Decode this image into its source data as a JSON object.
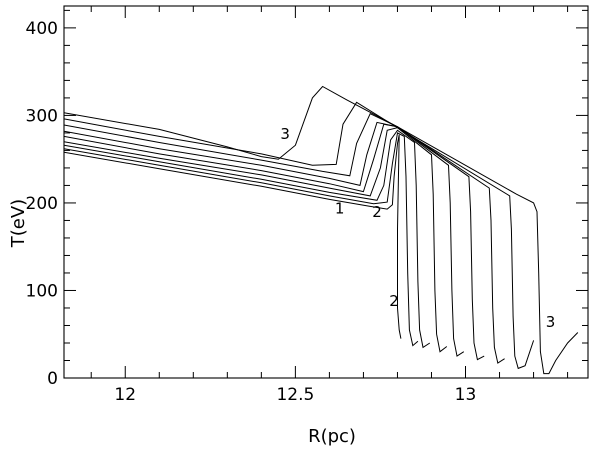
{
  "chart_data": {
    "type": "line",
    "title": "",
    "xlabel": "R(pc)",
    "ylabel": "T(eV)",
    "xlim": [
      11.82,
      13.36
    ],
    "ylim": [
      0,
      425
    ],
    "x_ticks": [
      12,
      12.5,
      13
    ],
    "x_tick_labels": [
      "12",
      "12.5",
      "13"
    ],
    "y_ticks": [
      0,
      100,
      200,
      300,
      400
    ],
    "y_tick_labels": [
      "0",
      "100",
      "200",
      "300",
      "400"
    ],
    "grid": false,
    "legend": "none",
    "annotations": [
      {
        "text": "1",
        "x": 12.63,
        "y": 188
      },
      {
        "text": "2",
        "x": 12.74,
        "y": 184
      },
      {
        "text": "2",
        "x": 12.79,
        "y": 82
      },
      {
        "text": "3",
        "x": 12.47,
        "y": 273
      },
      {
        "text": "3",
        "x": 13.25,
        "y": 58
      }
    ],
    "series": [
      {
        "points": [
          [
            11.82,
            258
          ],
          [
            12.1,
            239
          ],
          [
            12.4,
            219
          ],
          [
            12.6,
            204
          ],
          [
            12.72,
            196
          ],
          [
            12.77,
            193
          ],
          [
            12.785,
            198
          ],
          [
            12.79,
            230
          ],
          [
            12.8,
            268
          ],
          [
            12.805,
            278
          ],
          [
            12.8,
            170
          ],
          [
            12.8,
            80
          ],
          [
            12.805,
            55
          ],
          [
            12.81,
            45
          ]
        ]
      },
      {
        "points": [
          [
            11.82,
            262
          ],
          [
            12.1,
            243
          ],
          [
            12.4,
            223
          ],
          [
            12.6,
            208
          ],
          [
            12.73,
            199
          ],
          [
            12.77,
            201
          ],
          [
            12.785,
            245
          ],
          [
            12.8,
            280
          ],
          [
            12.82,
            276
          ],
          [
            12.825,
            230
          ],
          [
            12.83,
            120
          ],
          [
            12.835,
            55
          ],
          [
            12.845,
            37
          ],
          [
            12.86,
            42
          ]
        ]
      },
      {
        "points": [
          [
            11.82,
            266
          ],
          [
            12.1,
            247
          ],
          [
            12.4,
            227
          ],
          [
            12.6,
            212
          ],
          [
            12.74,
            203
          ],
          [
            12.76,
            220
          ],
          [
            12.78,
            272
          ],
          [
            12.8,
            283
          ],
          [
            12.85,
            269
          ],
          [
            12.855,
            220
          ],
          [
            12.86,
            110
          ],
          [
            12.865,
            55
          ],
          [
            12.875,
            35
          ],
          [
            12.895,
            40
          ]
        ]
      },
      {
        "points": [
          [
            11.82,
            270
          ],
          [
            12.1,
            251
          ],
          [
            12.4,
            232
          ],
          [
            12.6,
            217
          ],
          [
            12.72,
            208
          ],
          [
            12.75,
            240
          ],
          [
            12.77,
            283
          ],
          [
            12.8,
            286
          ],
          [
            12.9,
            255
          ],
          [
            12.905,
            210
          ],
          [
            12.91,
            100
          ],
          [
            12.915,
            50
          ],
          [
            12.925,
            30
          ],
          [
            12.945,
            36
          ]
        ]
      },
      {
        "points": [
          [
            11.82,
            276
          ],
          [
            12.1,
            256
          ],
          [
            12.4,
            237
          ],
          [
            12.6,
            222
          ],
          [
            12.7,
            213
          ],
          [
            12.73,
            250
          ],
          [
            12.76,
            290
          ],
          [
            12.8,
            287
          ],
          [
            12.95,
            243
          ],
          [
            12.955,
            200
          ],
          [
            12.96,
            100
          ],
          [
            12.965,
            45
          ],
          [
            12.975,
            25
          ],
          [
            12.995,
            30
          ]
        ]
      },
      {
        "points": [
          [
            11.82,
            282
          ],
          [
            12.1,
            262
          ],
          [
            12.4,
            243
          ],
          [
            12.6,
            228
          ],
          [
            12.69,
            220
          ],
          [
            12.71,
            255
          ],
          [
            12.74,
            292
          ],
          [
            12.8,
            287
          ],
          [
            13.01,
            230
          ],
          [
            13.015,
            190
          ],
          [
            13.02,
            90
          ],
          [
            13.025,
            40
          ],
          [
            13.035,
            21
          ],
          [
            13.055,
            25
          ]
        ]
      },
      {
        "points": [
          [
            11.82,
            289
          ],
          [
            12.1,
            269
          ],
          [
            12.4,
            249
          ],
          [
            12.58,
            236
          ],
          [
            12.66,
            231
          ],
          [
            12.68,
            268
          ],
          [
            12.72,
            302
          ],
          [
            12.8,
            287
          ],
          [
            13.07,
            217
          ],
          [
            13.075,
            180
          ],
          [
            13.08,
            80
          ],
          [
            13.085,
            35
          ],
          [
            13.095,
            17
          ],
          [
            13.115,
            22
          ]
        ]
      },
      {
        "points": [
          [
            11.82,
            296
          ],
          [
            12.1,
            276
          ],
          [
            12.4,
            256
          ],
          [
            12.55,
            243
          ],
          [
            12.62,
            244
          ],
          [
            12.64,
            290
          ],
          [
            12.68,
            315
          ],
          [
            12.8,
            286
          ],
          [
            13.13,
            208
          ],
          [
            13.135,
            170
          ],
          [
            13.14,
            70
          ],
          [
            13.145,
            25
          ],
          [
            13.155,
            11
          ],
          [
            13.175,
            14
          ],
          [
            13.2,
            43
          ]
        ]
      },
      {
        "points": [
          [
            11.82,
            303
          ],
          [
            12.1,
            284
          ],
          [
            12.3,
            264
          ],
          [
            12.4,
            253
          ],
          [
            12.45,
            250
          ],
          [
            12.5,
            266
          ],
          [
            12.55,
            320
          ],
          [
            12.58,
            333
          ],
          [
            12.65,
            318
          ],
          [
            12.8,
            287
          ],
          [
            13.0,
            243
          ],
          [
            13.15,
            210
          ],
          [
            13.2,
            200
          ],
          [
            13.21,
            190
          ],
          [
            13.215,
            120
          ],
          [
            13.22,
            30
          ],
          [
            13.23,
            5
          ],
          [
            13.245,
            5
          ],
          [
            13.265,
            20
          ],
          [
            13.3,
            40
          ],
          [
            13.33,
            52
          ]
        ]
      }
    ]
  }
}
